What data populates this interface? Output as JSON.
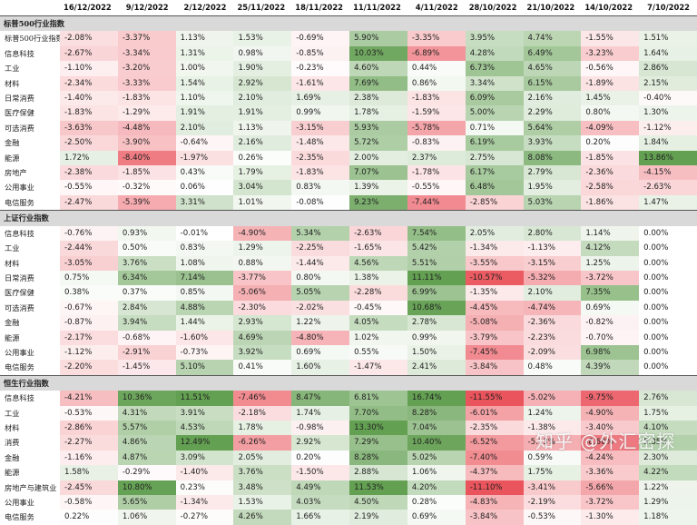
{
  "headers": [
    "",
    "16/12/2022",
    "9/12/2022",
    "2/12/2022",
    "25/11/2022",
    "18/11/2022",
    "11/11/2022",
    "4/11/2022",
    "28/10/2022",
    "21/10/2022",
    "14/10/2022",
    "7/10/2022"
  ],
  "sections": [
    {
      "title": "标普500行业指数",
      "title_inline": true,
      "rows": [
        {
          "label": "标普500行业指数",
          "values": [
            "-2.08%",
            "-3.37%",
            "1.13%",
            "1.53%",
            "-0.69%",
            "5.90%",
            "-3.35%",
            "3.95%",
            "4.74%",
            "-1.55%",
            "1.51%"
          ]
        },
        {
          "label": "信息科技",
          "values": [
            "-2.67%",
            "-3.34%",
            "1.31%",
            "0.98%",
            "-0.85%",
            "10.03%",
            "-6.89%",
            "4.28%",
            "6.49%",
            "-3.23%",
            "1.64%"
          ]
        },
        {
          "label": "工业",
          "values": [
            "-1.10%",
            "-3.20%",
            "1.00%",
            "1.90%",
            "-0.23%",
            "4.60%",
            "0.44%",
            "6.73%",
            "4.65%",
            "-0.56%",
            "2.86%"
          ]
        },
        {
          "label": "材料",
          "values": [
            "-2.34%",
            "-3.33%",
            "1.54%",
            "2.92%",
            "-1.61%",
            "7.69%",
            "0.86%",
            "3.34%",
            "6.15%",
            "-1.89%",
            "2.15%"
          ]
        },
        {
          "label": "日常消费",
          "values": [
            "-1.40%",
            "-1.83%",
            "1.10%",
            "2.10%",
            "1.69%",
            "2.38%",
            "-1.83%",
            "6.09%",
            "2.16%",
            "1.45%",
            "-0.40%"
          ]
        },
        {
          "label": "医疗保健",
          "values": [
            "-1.83%",
            "-1.29%",
            "1.91%",
            "1.91%",
            "0.99%",
            "1.78%",
            "-1.59%",
            "5.00%",
            "2.29%",
            "0.80%",
            "1.30%"
          ]
        },
        {
          "label": "可选消费",
          "values": [
            "-3.63%",
            "-4.48%",
            "2.10%",
            "1.13%",
            "-3.15%",
            "5.93%",
            "-5.78%",
            "0.71%",
            "5.64%",
            "-4.09%",
            "-1.12%"
          ]
        },
        {
          "label": "金融",
          "values": [
            "-2.50%",
            "-3.90%",
            "-0.64%",
            "2.16%",
            "-1.48%",
            "5.72%",
            "-0.83%",
            "6.19%",
            "3.93%",
            "0.20%",
            "1.84%"
          ]
        },
        {
          "label": "能源",
          "values": [
            "1.72%",
            "-8.40%",
            "-1.97%",
            "0.26%",
            "-2.35%",
            "2.00%",
            "2.37%",
            "2.75%",
            "8.08%",
            "-1.85%",
            "13.86%"
          ]
        },
        {
          "label": "房地产",
          "values": [
            "-2.38%",
            "-1.85%",
            "0.43%",
            "1.79%",
            "-1.83%",
            "7.07%",
            "-1.78%",
            "6.17%",
            "2.79%",
            "-2.36%",
            "-4.15%"
          ]
        },
        {
          "label": "公用事业",
          "values": [
            "-0.55%",
            "-0.32%",
            "0.06%",
            "3.04%",
            "0.83%",
            "1.39%",
            "-0.55%",
            "6.48%",
            "1.95%",
            "-2.58%",
            "-2.63%"
          ]
        },
        {
          "label": "电信服务",
          "values": [
            "-2.47%",
            "-5.39%",
            "3.31%",
            "1.01%",
            "-0.08%",
            "9.23%",
            "-7.44%",
            "-2.85%",
            "5.03%",
            "-1.86%",
            "1.47%"
          ]
        }
      ]
    },
    {
      "title": "上证行业指数",
      "rows": [
        {
          "label": "信息科技",
          "values": [
            "-0.76%",
            "0.93%",
            "-0.01%",
            "-4.90%",
            "5.34%",
            "-2.63%",
            "7.54%",
            "2.05%",
            "2.80%",
            "1.14%",
            "0.00%"
          ]
        },
        {
          "label": "工业",
          "values": [
            "-2.44%",
            "0.50%",
            "0.83%",
            "1.29%",
            "-2.25%",
            "-1.65%",
            "5.42%",
            "-1.34%",
            "-1.13%",
            "4.12%",
            "0.00%"
          ]
        },
        {
          "label": "材料",
          "values": [
            "-3.05%",
            "3.76%",
            "1.08%",
            "0.88%",
            "-1.44%",
            "4.56%",
            "5.51%",
            "-3.55%",
            "-3.15%",
            "1.25%",
            "0.00%"
          ]
        },
        {
          "label": "日常消费",
          "values": [
            "0.75%",
            "6.34%",
            "7.14%",
            "-3.77%",
            "0.80%",
            "1.38%",
            "11.11%",
            "-10.57%",
            "-5.32%",
            "-3.72%",
            "0.00%"
          ]
        },
        {
          "label": "医疗保健",
          "values": [
            "0.38%",
            "0.37%",
            "0.85%",
            "-5.06%",
            "5.05%",
            "-2.28%",
            "6.99%",
            "-1.35%",
            "2.10%",
            "7.35%",
            "0.00%"
          ]
        },
        {
          "label": "可选消费",
          "values": [
            "-0.67%",
            "2.84%",
            "4.88%",
            "-2.30%",
            "-2.02%",
            "-0.45%",
            "10.68%",
            "-4.45%",
            "-4.74%",
            "0.69%",
            "0.00%"
          ]
        },
        {
          "label": "金融",
          "values": [
            "-0.87%",
            "3.94%",
            "1.44%",
            "2.93%",
            "1.22%",
            "4.05%",
            "2.78%",
            "-5.08%",
            "-2.36%",
            "-0.82%",
            "0.00%"
          ]
        },
        {
          "label": "能源",
          "values": [
            "-2.17%",
            "-0.68%",
            "-1.60%",
            "4.69%",
            "-4.80%",
            "1.02%",
            "0.99%",
            "-3.79%",
            "-2.23%",
            "-0.70%",
            "0.00%"
          ]
        },
        {
          "label": "公用事业",
          "values": [
            "-1.12%",
            "-2.91%",
            "-0.73%",
            "3.92%",
            "0.69%",
            "0.55%",
            "1.50%",
            "-7.45%",
            "-2.09%",
            "6.98%",
            "0.00%"
          ]
        },
        {
          "label": "电信服务",
          "values": [
            "-2.20%",
            "-1.45%",
            "5.10%",
            "0.41%",
            "1.60%",
            "-1.47%",
            "2.41%",
            "-3.84%",
            "0.48%",
            "4.39%",
            "0.00%"
          ]
        }
      ]
    },
    {
      "title": "恒生行业指数",
      "rows": [
        {
          "label": "信息科技",
          "values": [
            "-4.21%",
            "10.36%",
            "11.51%",
            "-7.46%",
            "8.47%",
            "6.81%",
            "16.74%",
            "-11.55%",
            "-5.02%",
            "-9.75%",
            "2.76%"
          ]
        },
        {
          "label": "工业",
          "values": [
            "-0.53%",
            "4.31%",
            "3.91%",
            "-2.18%",
            "1.74%",
            "7.70%",
            "8.28%",
            "-6.01%",
            "1.24%",
            "-4.90%",
            "1.75%"
          ]
        },
        {
          "label": "材料",
          "values": [
            "-2.86%",
            "5.57%",
            "4.53%",
            "1.78%",
            "-0.98%",
            "13.30%",
            "7.04%",
            "-2.35%",
            "-1.38%",
            "-3.40%",
            "4.10%"
          ]
        },
        {
          "label": "消费",
          "values": [
            "-2.27%",
            "4.86%",
            "12.49%",
            "-6.26%",
            "2.92%",
            "7.29%",
            "10.40%",
            "-6.52%",
            "-5.13%",
            "-8.60%",
            "5.35%"
          ]
        },
        {
          "label": "金融",
          "values": [
            "-1.16%",
            "4.87%",
            "3.09%",
            "2.05%",
            "0.20%",
            "8.28%",
            "5.02%",
            "-7.40%",
            "0.59%",
            "-4.24%",
            "2.30%"
          ]
        },
        {
          "label": "能源",
          "values": [
            "1.58%",
            "-0.29%",
            "-1.40%",
            "3.76%",
            "-1.50%",
            "2.88%",
            "1.06%",
            "-4.37%",
            "1.75%",
            "-3.36%",
            "4.22%"
          ]
        },
        {
          "label": "房地产与建筑业",
          "values": [
            "-2.45%",
            "10.80%",
            "0.23%",
            "3.48%",
            "4.49%",
            "11.53%",
            "4.20%",
            "-11.10%",
            "-3.41%",
            "-5.66%",
            "1.22%"
          ]
        },
        {
          "label": "公用事业",
          "values": [
            "-0.58%",
            "5.65%",
            "-1.34%",
            "1.53%",
            "4.03%",
            "4.50%",
            "0.28%",
            "-4.83%",
            "-2.19%",
            "-3.72%",
            "1.29%"
          ]
        },
        {
          "label": "电信服务",
          "values": [
            "0.22%",
            "1.06%",
            "-0.27%",
            "4.26%",
            "1.66%",
            "2.19%",
            "0.69%",
            "-3.84%",
            "-0.53%",
            "-1.30%",
            "1.18%"
          ]
        }
      ]
    }
  ],
  "watermark": "知乎 @外汇密探",
  "colors": {
    "positive_strong": "#6aa84f",
    "negative_strong": "#e06666",
    "section_bg": "#d9d9d9"
  }
}
